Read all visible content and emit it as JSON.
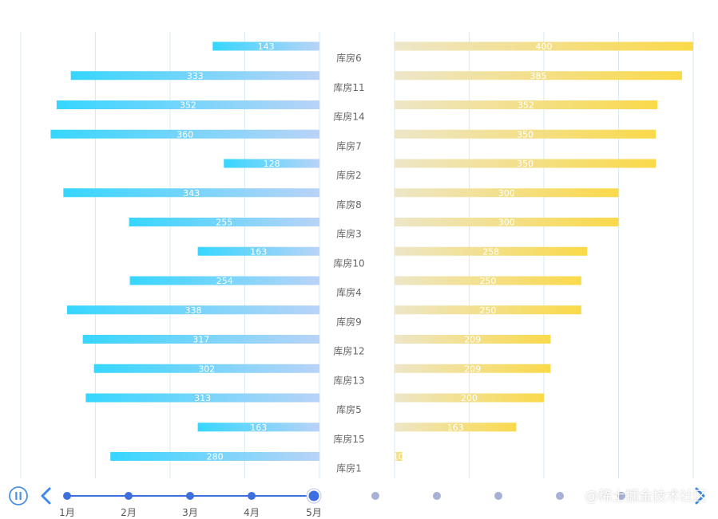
{
  "chart_data": {
    "type": "bar",
    "categories": [
      "库房6",
      "库房11",
      "库房14",
      "库房7",
      "库房2",
      "库房8",
      "库房3",
      "库房10",
      "库房4",
      "库房9",
      "库房12",
      "库房13",
      "库房5",
      "库房15",
      "库房1"
    ],
    "series": [
      {
        "name": "left",
        "values": [
          143,
          333,
          352,
          360,
          128,
          343,
          255,
          163,
          254,
          338,
          317,
          302,
          313,
          163,
          280
        ],
        "colors": [
          "#36d6ff",
          "#b9d3f7"
        ]
      },
      {
        "name": "right",
        "values": [
          400,
          385,
          352,
          350,
          350,
          300,
          300,
          258,
          250,
          250,
          209,
          209,
          200,
          163,
          10
        ],
        "colors": [
          "#ede6c8",
          "#fad94a"
        ]
      }
    ],
    "left_xlim": [
      0,
      400
    ],
    "right_xlim": [
      0,
      400
    ]
  },
  "timeline": {
    "months": [
      "1月",
      "2月",
      "3月",
      "4月",
      "5月"
    ],
    "current_index": 4,
    "extra_dots": 5,
    "play_icon": "pause-icon",
    "prev_icon": "chevron-left-icon",
    "next_icon": "chevron-right-icon",
    "line_color": "#3d6fe0",
    "inactive_color": "#a7b1d6"
  },
  "watermark": "@稀土掘金技术社区"
}
